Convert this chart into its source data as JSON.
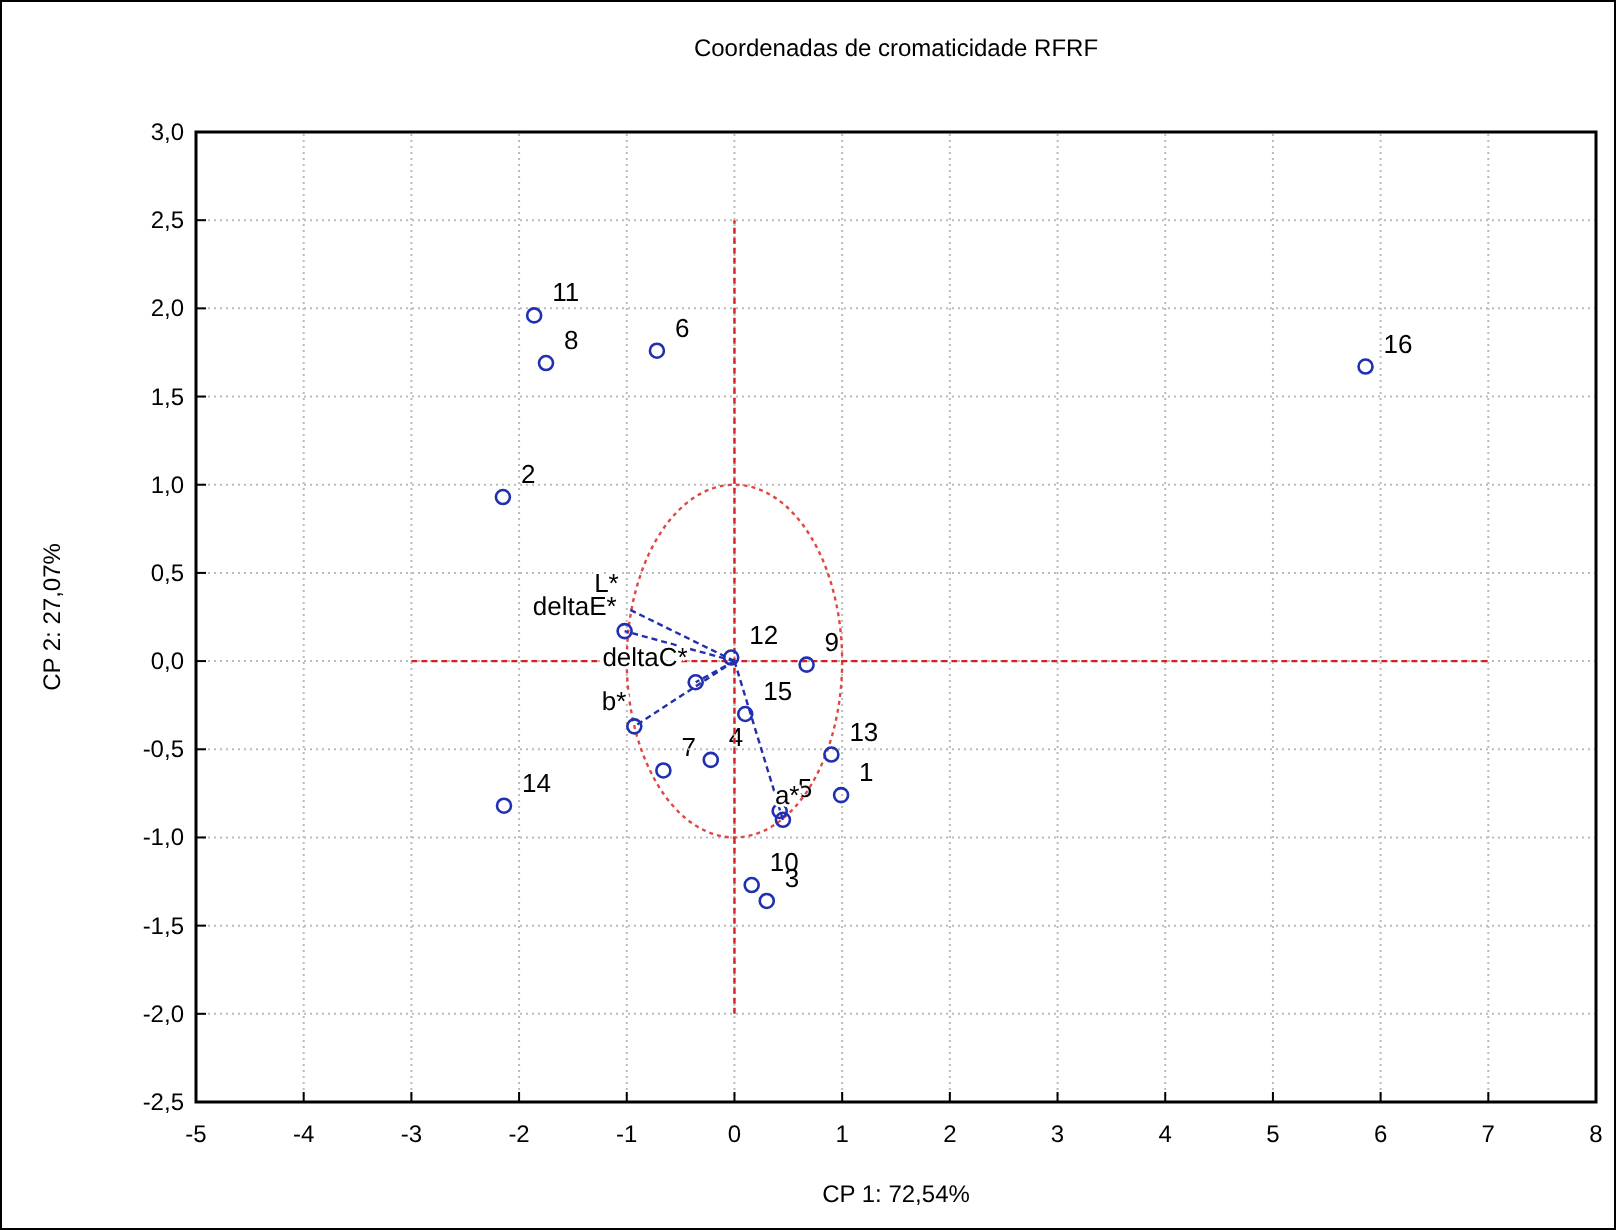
{
  "chart_data": {
    "type": "scatter",
    "title": "Coordenadas de cromaticidade RFRF",
    "xlabel": "CP 1: 72,54%",
    "ylabel": "CP 2: 27,07%",
    "xlim": [
      -5,
      8
    ],
    "xticks": [
      -5,
      -4,
      -3,
      -2,
      -1,
      0,
      1,
      2,
      3,
      4,
      5,
      6,
      7,
      8
    ],
    "ylim": [
      -2.5,
      3
    ],
    "yticks": [
      {
        "value": -2.5,
        "label": "-2,5"
      },
      {
        "value": -2,
        "label": "-2,0"
      },
      {
        "value": -1.5,
        "label": "-1,5"
      },
      {
        "value": -1,
        "label": "-1,0"
      },
      {
        "value": -0.5,
        "label": "-0,5"
      },
      {
        "value": 0,
        "label": "0,0"
      },
      {
        "value": 0.5,
        "label": "0,5"
      },
      {
        "value": 1,
        "label": "1,0"
      },
      {
        "value": 1.5,
        "label": "1,5"
      },
      {
        "value": 2,
        "label": "2,0"
      },
      {
        "value": 2.5,
        "label": "2,5"
      },
      {
        "value": 3,
        "label": "3,0"
      }
    ],
    "grid": true,
    "marker": "circle",
    "series": [
      {
        "type": "line",
        "color": "#d42020",
        "line_style": "dashed",
        "marker": "none",
        "x": [
          0,
          0
        ],
        "values": [
          -2,
          2.5
        ]
      },
      {
        "type": "line",
        "color": "#d42020",
        "line_style": "dashed",
        "marker": "none",
        "x": [
          -3,
          7
        ],
        "values": [
          0,
          0
        ]
      },
      {
        "type": "line",
        "name": "L*",
        "color": "#2030b0",
        "line_style": "dashed",
        "marker": "none",
        "x": [
          0,
          -1.0
        ],
        "values": [
          0,
          0.3
        ]
      },
      {
        "type": "line",
        "name": "deltaE*",
        "color": "#2030b0",
        "line_style": "dashed",
        "marker": "circle",
        "x": [
          0,
          -1.02
        ],
        "values": [
          0,
          0.17
        ]
      },
      {
        "type": "line",
        "name": "deltaC*",
        "color": "#2030b0",
        "line_style": "dashed",
        "marker": "circle",
        "x": [
          0,
          -0.36
        ],
        "values": [
          0,
          -0.12
        ]
      },
      {
        "type": "line",
        "name": "b*",
        "color": "#2030b0",
        "line_style": "dashed",
        "marker": "circle",
        "x": [
          0,
          -0.93
        ],
        "values": [
          0,
          -0.37
        ]
      },
      {
        "type": "line",
        "name": "a*",
        "color": "#2030b0",
        "line_style": "dashed",
        "marker": "circle",
        "x": [
          0,
          0.45
        ],
        "values": [
          0,
          -0.9
        ]
      },
      {
        "color": "#2030b0",
        "x": [
          0.99,
          -2.15,
          0.3,
          -0.22,
          0.42,
          -0.72,
          -0.66,
          -1.75,
          0.67,
          0.16,
          -1.86,
          -0.03,
          0.9,
          -2.14,
          0.1,
          5.86
        ],
        "values": [
          -0.76,
          0.93,
          -1.36,
          -0.56,
          -0.85,
          1.76,
          -0.62,
          1.69,
          -0.02,
          -1.27,
          1.96,
          0.02,
          -0.53,
          -0.82,
          -0.3,
          1.67
        ]
      }
    ],
    "annotations": [
      {
        "text": "1",
        "x": 0.99,
        "y": -0.76
      },
      {
        "text": "2",
        "x": -2.15,
        "y": 0.93
      },
      {
        "text": "3",
        "x": 0.3,
        "y": -1.36
      },
      {
        "text": "4",
        "x": -0.22,
        "y": -0.56
      },
      {
        "text": "5",
        "x": 0.42,
        "y": -0.85
      },
      {
        "text": "6",
        "x": -0.72,
        "y": 1.76
      },
      {
        "text": "7",
        "x": -0.66,
        "y": -0.62
      },
      {
        "text": "8",
        "x": -1.75,
        "y": 1.69
      },
      {
        "text": "9",
        "x": 0.67,
        "y": -0.02
      },
      {
        "text": "10",
        "x": 0.16,
        "y": -1.27
      },
      {
        "text": "11",
        "x": -1.86,
        "y": 1.96
      },
      {
        "text": "12",
        "x": -0.03,
        "y": 0.02
      },
      {
        "text": "13",
        "x": 0.9,
        "y": -0.53
      },
      {
        "text": "14",
        "x": -2.14,
        "y": -0.82
      },
      {
        "text": "15",
        "x": 0.1,
        "y": -0.3
      },
      {
        "text": "16",
        "x": 5.86,
        "y": 1.67
      }
    ]
  }
}
